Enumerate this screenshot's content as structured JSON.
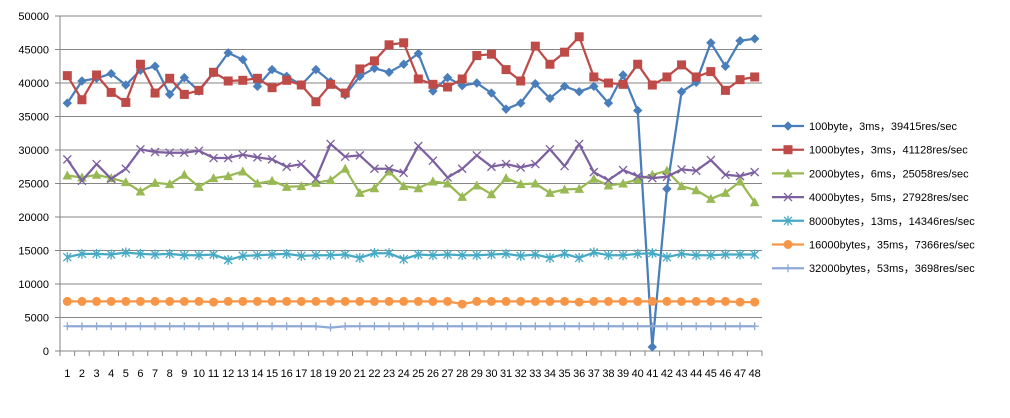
{
  "chart_data": {
    "type": "line",
    "title": "",
    "xlabel": "",
    "ylabel": "",
    "ylim": [
      0,
      50000
    ],
    "yticks": [
      0,
      5000,
      10000,
      15000,
      20000,
      25000,
      30000,
      35000,
      40000,
      45000,
      50000
    ],
    "grid": "horizontal",
    "legend": "right",
    "categories": [
      "1",
      "2",
      "3",
      "4",
      "5",
      "6",
      "7",
      "8",
      "9",
      "10",
      "11",
      "12",
      "13",
      "14",
      "15",
      "16",
      "17",
      "18",
      "19",
      "20",
      "21",
      "22",
      "23",
      "24",
      "25",
      "26",
      "27",
      "28",
      "29",
      "30",
      "31",
      "32",
      "33",
      "34",
      "35",
      "36",
      "37",
      "38",
      "39",
      "40",
      "41",
      "42",
      "43",
      "44",
      "45",
      "46",
      "47",
      "48"
    ],
    "series": [
      {
        "name": "100byte，3ms，39415res/sec",
        "color": "#4A7EBB",
        "marker": "diamond",
        "values": [
          37000,
          40300,
          40700,
          41400,
          39700,
          41900,
          42500,
          38300,
          40800,
          38800,
          41500,
          44500,
          43500,
          39500,
          42000,
          41000,
          39700,
          42000,
          40200,
          38200,
          41000,
          42200,
          41600,
          42800,
          44400,
          38800,
          40800,
          39600,
          40000,
          38500,
          36100,
          37000,
          39900,
          37700,
          39500,
          38700,
          39500,
          37000,
          41200,
          35900,
          600,
          24200,
          38700,
          40100,
          46000,
          42500,
          46300,
          46600
        ]
      },
      {
        "name": "1000bytes，3ms，41128res/sec",
        "color": "#BE4B48",
        "marker": "square",
        "values": [
          41100,
          37500,
          41200,
          38600,
          37100,
          42800,
          38500,
          40700,
          38300,
          38900,
          41600,
          40300,
          40400,
          40700,
          39300,
          40400,
          39700,
          37200,
          39800,
          38500,
          42100,
          43300,
          45700,
          46000,
          40600,
          39800,
          39400,
          40600,
          44100,
          44300,
          42000,
          40300,
          45500,
          42800,
          44600,
          46900,
          40900,
          40000,
          39800,
          42800,
          39700,
          40900,
          42700,
          40900,
          41700,
          38900,
          40500,
          40900
        ]
      },
      {
        "name": "2000bytes，6ms，25058res/sec",
        "color": "#98B954",
        "marker": "triangle",
        "values": [
          26200,
          25900,
          26300,
          25800,
          25200,
          23800,
          25100,
          24900,
          26300,
          24500,
          25800,
          26100,
          26800,
          25000,
          25400,
          24500,
          24600,
          25100,
          25500,
          27200,
          23600,
          24300,
          26800,
          24600,
          24300,
          25300,
          25000,
          23000,
          24700,
          23400,
          25800,
          24900,
          25000,
          23600,
          24100,
          24200,
          25700,
          24700,
          25000,
          25600,
          26300,
          26900,
          24600,
          24000,
          22700,
          23600,
          25300,
          22200
        ]
      },
      {
        "name": "4000bytes，5ms，27928res/sec",
        "color": "#7D60A0",
        "marker": "x",
        "values": [
          28600,
          25400,
          27900,
          25700,
          27200,
          30100,
          29700,
          29600,
          29600,
          29900,
          28800,
          28800,
          29300,
          28900,
          28600,
          27500,
          27900,
          25700,
          30900,
          29000,
          29200,
          27200,
          27200,
          26600,
          30600,
          28400,
          25900,
          27200,
          29200,
          27500,
          27900,
          27400,
          27900,
          30100,
          27600,
          30900,
          26700,
          25500,
          27000,
          26100,
          25800,
          26000,
          27100,
          26900,
          28500,
          26300,
          26100,
          26700
        ]
      },
      {
        "name": "8000bytes，13ms，14346res/sec",
        "color": "#46AAC5",
        "marker": "asterisk",
        "values": [
          14000,
          14500,
          14500,
          14400,
          14700,
          14500,
          14400,
          14500,
          14300,
          14300,
          14400,
          13600,
          14200,
          14300,
          14400,
          14500,
          14200,
          14300,
          14300,
          14400,
          13900,
          14600,
          14600,
          13700,
          14400,
          14300,
          14400,
          14300,
          14300,
          14400,
          14500,
          14200,
          14400,
          13900,
          14500,
          13900,
          14700,
          14300,
          14300,
          14500,
          14600,
          14000,
          14500,
          14300,
          14300,
          14400,
          14400,
          14400
        ]
      },
      {
        "name": "16000bytes，35ms，7366res/sec",
        "color": "#F79646",
        "marker": "circle",
        "values": [
          7400,
          7400,
          7400,
          7400,
          7400,
          7400,
          7400,
          7400,
          7400,
          7400,
          7300,
          7400,
          7400,
          7400,
          7400,
          7400,
          7400,
          7400,
          7400,
          7400,
          7400,
          7400,
          7400,
          7400,
          7400,
          7400,
          7400,
          7000,
          7400,
          7400,
          7400,
          7400,
          7400,
          7400,
          7400,
          7300,
          7400,
          7400,
          7400,
          7400,
          7400,
          7400,
          7400,
          7400,
          7400,
          7400,
          7300,
          7300
        ]
      },
      {
        "name": "32000bytes，53ms，3698res/sec",
        "color": "#8EA9D6",
        "marker": "plus",
        "values": [
          3700,
          3700,
          3700,
          3700,
          3700,
          3700,
          3700,
          3700,
          3700,
          3700,
          3700,
          3700,
          3700,
          3700,
          3700,
          3700,
          3700,
          3700,
          3500,
          3700,
          3700,
          3700,
          3700,
          3700,
          3700,
          3700,
          3700,
          3700,
          3700,
          3700,
          3700,
          3700,
          3700,
          3700,
          3700,
          3700,
          3700,
          3700,
          3700,
          3700,
          3700,
          3700,
          3700,
          3700,
          3700,
          3700,
          3700,
          3700
        ]
      }
    ]
  }
}
